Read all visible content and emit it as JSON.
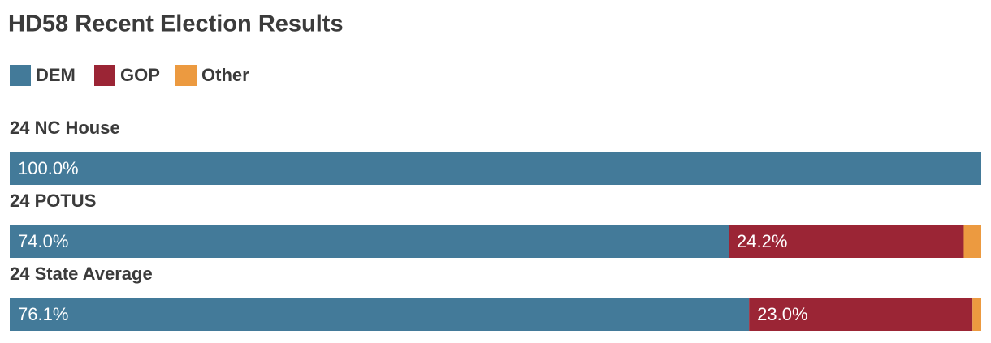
{
  "chart_data": {
    "type": "stacked-bar-horizontal",
    "title": "HD58 Recent Election Results",
    "categories": [
      "24 NC House",
      "24 POTUS",
      "24 State Average"
    ],
    "series": [
      {
        "name": "DEM",
        "color": "#437a99",
        "values": [
          100.0,
          74.0,
          76.1
        ],
        "value_labels": [
          "100.0%",
          "74.0%",
          "76.1%"
        ]
      },
      {
        "name": "GOP",
        "color": "#9b2535",
        "values": [
          0,
          24.2,
          23.0
        ],
        "value_labels": [
          null,
          "24.2%",
          "23.0%"
        ]
      },
      {
        "name": "Other",
        "color": "#ec9a40",
        "values": [
          0,
          1.8,
          0.9
        ]
      }
    ],
    "xlim": [
      0,
      100
    ],
    "legend": "top-left"
  }
}
